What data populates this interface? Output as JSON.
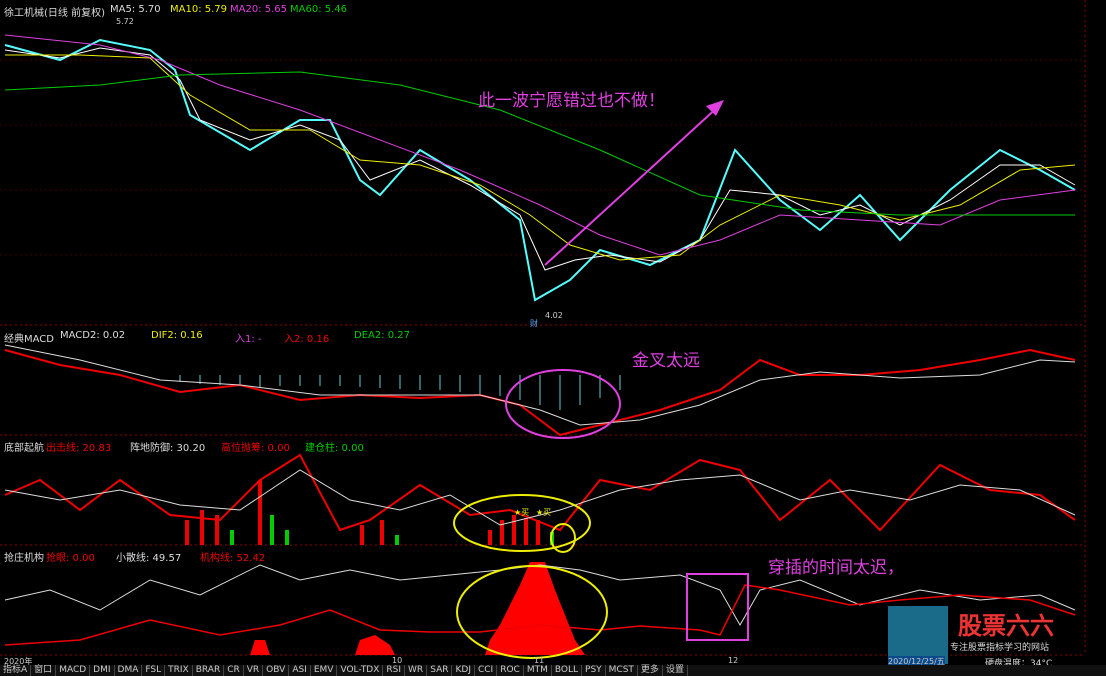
{
  "header": {
    "title": "徐工机械(日线 前复权)",
    "fields": [
      "MA5: 5.70",
      "MA10: 5.79",
      "MA20: 5.65",
      "MA60: 5.46"
    ]
  },
  "price_labels": {
    "high": "5.72",
    "low": "4.02",
    "marker": "财"
  },
  "annotations": {
    "main": "此一波宁愿错过也不做！",
    "macd": "金叉太远",
    "bottom": "穿插的时间太迟，",
    "buy": [
      "★买",
      "★买"
    ]
  },
  "panels": [
    {
      "title": "经典MACD",
      "fields": [
        "MACD2: 0.02",
        "DIF2: 0.16",
        "入1: -",
        "入2: 0.16",
        "DEA2: 0.27"
      ]
    },
    {
      "title": "底部起航",
      "fields": [
        "出击线: 20.83",
        "阵地防御: 30.20",
        "高位抛筹: 0.00",
        "建仓柱: 0.00"
      ]
    },
    {
      "title": "抢庄机构",
      "fields": [
        "抢眼: 0.00",
        "小散线: 49.57",
        "机构线: 52.42"
      ]
    }
  ],
  "x_axis": [
    "2020年",
    "10",
    "11",
    "12",
    "2020/12/25/五"
  ],
  "tabs": [
    "指标A",
    "窗口",
    "MACD",
    "DMI",
    "DMA",
    "FSL",
    "TRIX",
    "BRAR",
    "CR",
    "VR",
    "OBV",
    "ASI",
    "EMV",
    "VOL-TDX",
    "RSI",
    "WR",
    "SAR",
    "KDJ",
    "CCI",
    "ROC",
    "MTM",
    "BOLL",
    "PSY",
    "MCST",
    "更多",
    "设置"
  ],
  "watermark": {
    "brand": "股票六六",
    "slogan": "专注股票指标学习的网站",
    "status": "硬盘温度：34°C"
  }
}
